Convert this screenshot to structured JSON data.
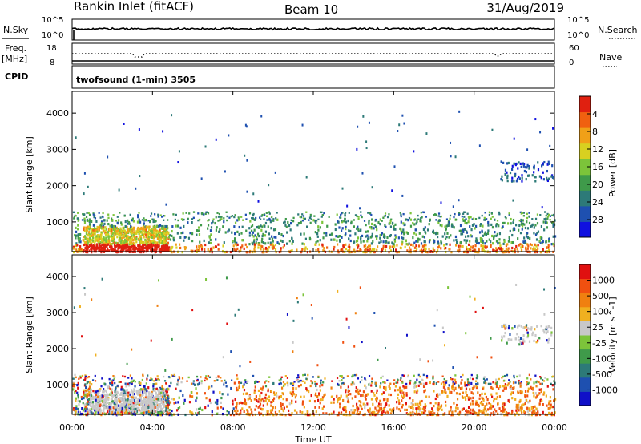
{
  "header": {
    "station": "Rankin Inlet (fitACF)",
    "beam": "Beam 10",
    "date": "31/Aug/2019"
  },
  "summary_panel": {
    "nsky_label": "N.Sky",
    "nsearch_label": "N.Search",
    "power_ticks_left": [
      "10^5",
      "10^0"
    ],
    "power_ticks_right": [
      "10^5",
      "10^0"
    ],
    "freq_label_line1": "Freq.",
    "freq_label_line2": "[MHz]",
    "freq_ticks": [
      "18",
      "8"
    ],
    "nave_label": "Nave",
    "nave_ticks": [
      "60",
      "0"
    ],
    "cpid_label": "CPID",
    "cpid_text": "twofsound (1-min) 3505"
  },
  "chart_data": [
    {
      "type": "heatmap",
      "name": "power",
      "ylabel": "Slant Range [km]",
      "y_ticks": [
        1000,
        2000,
        3000,
        4000
      ],
      "ylim": [
        180,
        4600
      ],
      "xlim": [
        0,
        24
      ],
      "colorbar": {
        "label": "Power [dB]",
        "tick_labels": [
          "4",
          "8",
          "12",
          "16",
          "20",
          "24",
          "28"
        ],
        "colors": [
          "#1010e0",
          "#1e50b0",
          "#2d7a78",
          "#3f9a4a",
          "#7cc43a",
          "#d8d020",
          "#f0a018",
          "#f06010",
          "#e02010"
        ]
      }
    },
    {
      "type": "heatmap",
      "name": "velocity",
      "ylabel": "Slant Range [km]",
      "y_ticks": [
        1000,
        2000,
        3000,
        4000
      ],
      "ylim": [
        180,
        4600
      ],
      "xlim": [
        0,
        24
      ],
      "colorbar": {
        "label": "Velocity [m s^-1]",
        "tick_labels": [
          "1000",
          "500",
          "100",
          "25",
          "-25",
          "-100",
          "-500",
          "-1000"
        ],
        "colors": [
          "#1010c8",
          "#1e50b0",
          "#2d7a78",
          "#3f9a4a",
          "#7cc43a",
          "#c8c8c8",
          "#f0b020",
          "#f08010",
          "#f05010",
          "#e01010"
        ]
      }
    }
  ],
  "x_axis": {
    "tick_labels": [
      "00:00",
      "04:00",
      "08:00",
      "12:00",
      "16:00",
      "20:00",
      "00:00"
    ],
    "label": "Time UT"
  }
}
